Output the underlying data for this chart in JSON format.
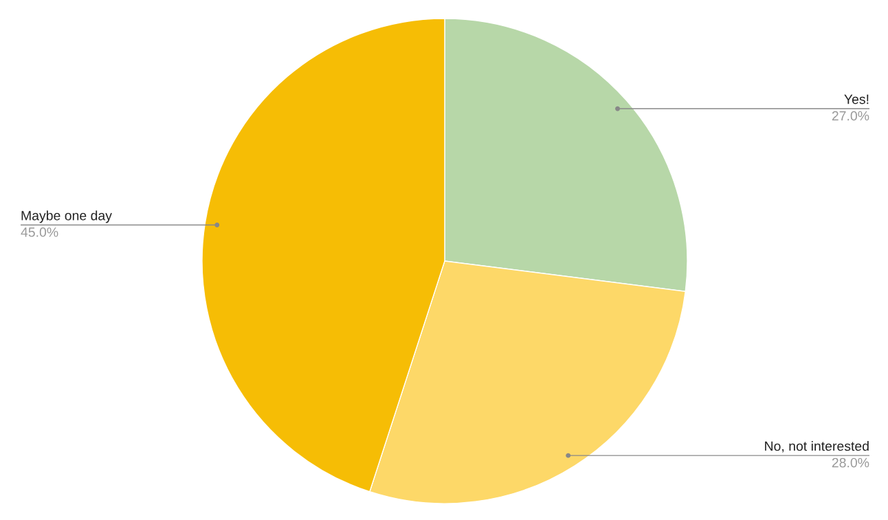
{
  "chart_data": {
    "type": "pie",
    "categories": [
      "Yes!",
      "No, not interested",
      "Maybe one day"
    ],
    "values": [
      27,
      28,
      45
    ],
    "colors": [
      "#b7d7a8",
      "#fdd868",
      "#f6bd05"
    ],
    "value_labels": [
      "27.0%",
      "28.0%",
      "45.0%"
    ],
    "legend": false
  }
}
